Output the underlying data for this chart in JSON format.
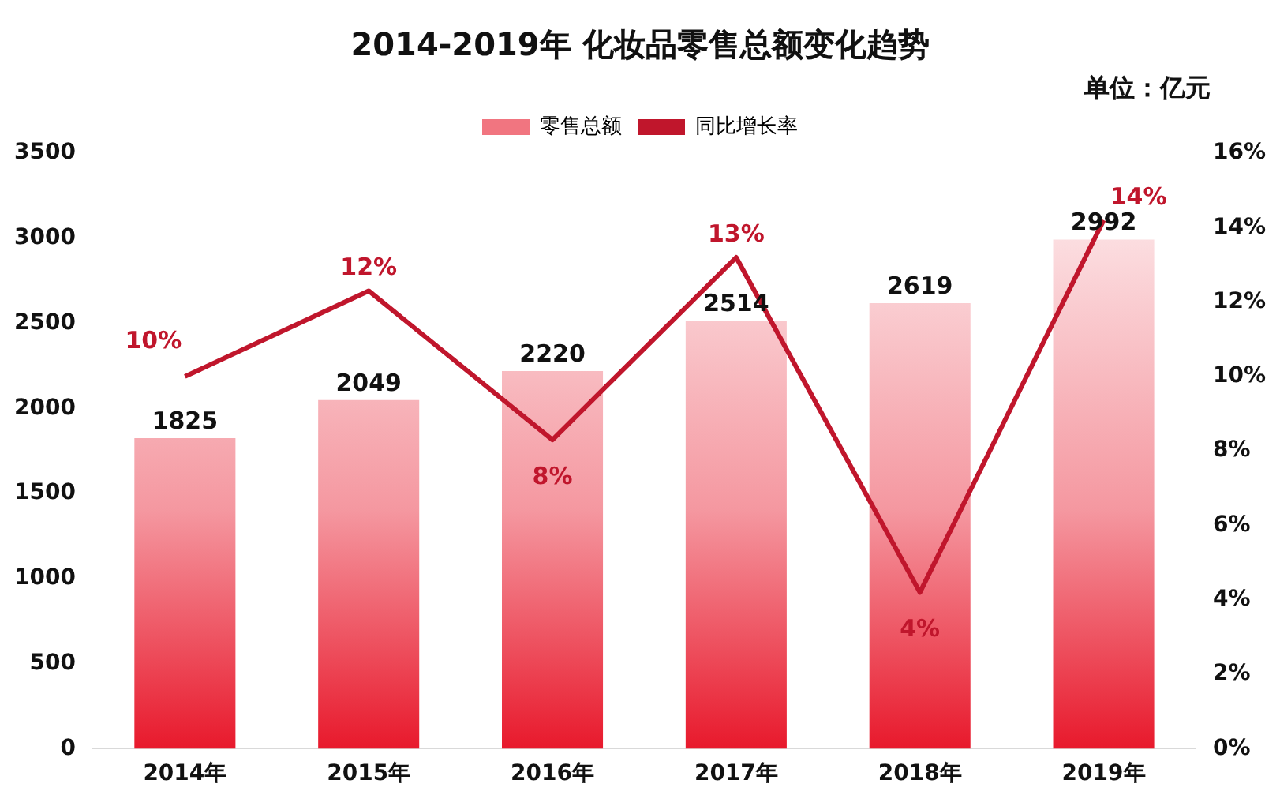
{
  "chart_data": {
    "type": "bar",
    "title": "2014-2019年 化妆品零售总额变化趋势",
    "annotations": [
      "单位：亿元"
    ],
    "categories": [
      "2014年",
      "2015年",
      "2016年",
      "2017年",
      "2018年",
      "2019年"
    ],
    "series": [
      {
        "name": "零售总额",
        "color": "#e8192c",
        "values": [
          1825,
          2049,
          2220,
          2514,
          2619,
          2992
        ],
        "value_labels": [
          "1825",
          "2049",
          "2220",
          "2514",
          "2619",
          "2992"
        ]
      },
      {
        "name": "同比增长率",
        "type": "line",
        "axis": "y2",
        "color": "#c0162c",
        "values": [
          10,
          12.3,
          8.3,
          13.2,
          4.2,
          14.2
        ],
        "value_labels": [
          "10%",
          "12%",
          "8%",
          "13%",
          "4%",
          "14%"
        ]
      }
    ],
    "ylim": [
      0,
      3500
    ],
    "yticks": [
      0,
      500,
      1000,
      1500,
      2000,
      2500,
      3000,
      3500
    ],
    "y2lim": [
      0,
      16
    ],
    "y2ticks": [
      {
        "value": 0,
        "label": "0%"
      },
      {
        "value": 2,
        "label": "2%"
      },
      {
        "value": 4,
        "label": "4%"
      },
      {
        "value": 6,
        "label": "6%"
      },
      {
        "value": 8,
        "label": "8%"
      },
      {
        "value": 10,
        "label": "10%"
      },
      {
        "value": 12,
        "label": "12%"
      },
      {
        "value": 14,
        "label": "14%"
      },
      {
        "value": 16,
        "label": "16%"
      }
    ],
    "grid": false,
    "legend": "top",
    "marker": "none",
    "line_style": "solid"
  }
}
